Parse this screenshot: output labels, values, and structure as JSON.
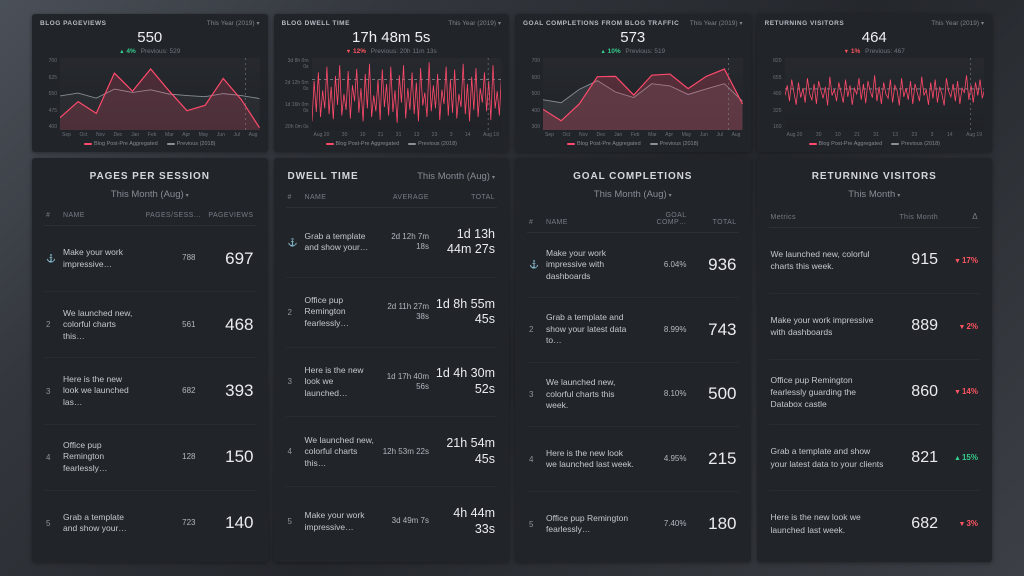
{
  "icons": {
    "chevron_down": "▾",
    "up_triangle": "▲",
    "down_triangle": "▼",
    "rank_medal": "⚓"
  },
  "colors": {
    "accent_pink": "#ff4a6b",
    "previous_grey": "#8a9098",
    "up_green": "#35cc8c",
    "down_red": "#ff5560",
    "panel_bg": "#212429"
  },
  "top_panels": [
    {
      "title": "BLOG PAGEVIEWS",
      "range": "This Year (2019)",
      "value": "550",
      "delta": {
        "dir": "up",
        "text": "4%"
      },
      "previous": "Previous: 529",
      "legend": [
        {
          "label": "Blog Post-Pre Aggregated",
          "color": "#ff4a6b"
        },
        {
          "label": "Previous (2018)",
          "color": "#8a9098"
        }
      ],
      "chart_data": {
        "type": "line",
        "xlabels": [
          "Sep",
          "Oct",
          "Nov",
          "Dec",
          "Jan",
          "Feb",
          "Mar",
          "Apr",
          "May",
          "Jun",
          "Jul",
          "Aug"
        ],
        "yticks": [
          "700",
          "625",
          "550",
          "475",
          "400"
        ],
        "ylim": [
          340,
          720
        ],
        "end_marker": true,
        "series": [
          {
            "name": "Previous (2018)",
            "color": "#878d95",
            "width": 0.9,
            "fill": true,
            "fill_opacity": 0.08,
            "values": [
              520,
              535,
              508,
              556,
              538,
              552,
              530,
              522,
              516,
              532,
              522,
              506
            ]
          },
          {
            "name": "Blog Post-Pre Aggregated",
            "color": "#ff4a6b",
            "width": 1.2,
            "fill": true,
            "fill_opacity": 0.18,
            "values": [
              405,
              490,
              428,
              640,
              545,
              662,
              548,
              442,
              470,
              612,
              500,
              352
            ]
          }
        ]
      }
    },
    {
      "title": "BLOG DWELL TIME",
      "range": "This Year (2019)",
      "value": "17h 48m 5s",
      "delta": {
        "dir": "down",
        "text": "12%"
      },
      "previous": "Previous: 20h 11m 13s",
      "legend": [
        {
          "label": "Blog Post-Pre Aggregated",
          "color": "#ff4a6b"
        },
        {
          "label": "Previous (2018)",
          "color": "#8a9098"
        }
      ],
      "chart_data": {
        "type": "line",
        "xlabels": [
          "Aug 20",
          "30",
          "10",
          "21",
          "31",
          "13",
          "23",
          "3",
          "14",
          "Aug 19"
        ],
        "yticks": [
          "3d 8h 0m 0s",
          "2d 12h 0m 0s",
          "1d 16h 0m 0s",
          "20h 0m 0s"
        ],
        "ylim": [
          0,
          100
        ],
        "end_marker": true,
        "series": [
          {
            "name": "Previous (2018)",
            "color": "#8a9098",
            "width": 0.8,
            "dashed": true,
            "values": [
              70,
              70
            ]
          },
          {
            "name": "Blog Post-Pre Aggregated",
            "color": "#ff4a6b",
            "width": 0.8,
            "values": [
              12,
              68,
              25,
              80,
              18,
              55,
              30,
              88,
              22,
              60,
              15,
              75,
              35,
              90,
              20,
              50,
              28,
              82,
              16,
              62,
              40,
              85,
              24,
              58,
              12,
              78,
              30,
              92,
              18,
              48,
              26,
              70,
              14,
              84,
              32,
              64,
              20,
              88,
              25,
              55,
              10,
              76,
              38,
              90,
              16,
              58,
              28,
              80,
              22,
              66,
              12,
              86,
              34,
              52,
              18,
              94,
              26,
              62,
              30,
              78,
              14,
              56,
              36,
              88,
              20,
              70,
              24,
              84,
              16,
              50,
              32,
              92,
              22,
              64,
              12,
              74,
              28,
              86,
              18,
              58,
              38,
              80,
              26,
              68,
              14,
              90,
              30,
              54,
              20,
              76
            ]
          }
        ]
      }
    },
    {
      "title": "GOAL COMPLETIONS FROM BLOG TRAFFIC",
      "range": "This Year (2019)",
      "value": "573",
      "delta": {
        "dir": "up",
        "text": "10%"
      },
      "previous": "Previous: 519",
      "legend": [
        {
          "label": "Blog Post-Pre Aggregated",
          "color": "#ff4a6b"
        },
        {
          "label": "Previous (2018)",
          "color": "#8a9098"
        }
      ],
      "chart_data": {
        "type": "line",
        "xlabels": [
          "Sep",
          "Oct",
          "Nov",
          "Dec",
          "Jan",
          "Feb",
          "Mar",
          "Apr",
          "May",
          "Jun",
          "Jul",
          "Aug"
        ],
        "yticks": [
          "700",
          "600",
          "500",
          "400",
          "300"
        ],
        "ylim": [
          250,
          720
        ],
        "end_marker": true,
        "series": [
          {
            "name": "Previous (2018)",
            "color": "#878d95",
            "width": 0.9,
            "fill": true,
            "fill_opacity": 0.16,
            "values": [
              448,
              428,
              515,
              572,
              498,
              462,
              552,
              538,
              482,
              518,
              552,
              438
            ]
          },
          {
            "name": "Blog Post-Pre Aggregated",
            "color": "#ff4a6b",
            "width": 1.2,
            "fill": true,
            "fill_opacity": 0.22,
            "values": [
              385,
              310,
              420,
              598,
              600,
              478,
              608,
              615,
              520,
              600,
              648,
              420
            ]
          }
        ]
      }
    },
    {
      "title": "RETURNING VISITORS",
      "range": "This Year (2019)",
      "value": "464",
      "delta": {
        "dir": "down",
        "text": "1%"
      },
      "previous": "Previous: 467",
      "legend": [
        {
          "label": "Blog Post-Pre Aggregated",
          "color": "#ff4a6b"
        },
        {
          "label": "Previous (2018)",
          "color": "#8a9098"
        }
      ],
      "chart_data": {
        "type": "line",
        "xlabels": [
          "Aug 20",
          "30",
          "10",
          "21",
          "31",
          "13",
          "23",
          "3",
          "14",
          "Aug 19"
        ],
        "yticks": [
          "820",
          "655",
          "490",
          "325",
          "160"
        ],
        "ylim": [
          0,
          100
        ],
        "end_marker": true,
        "series": [
          {
            "name": "Previous (2018)",
            "color": "#8a9098",
            "width": 0.8,
            "dashed": true,
            "values": [
              57,
              57
            ]
          },
          {
            "name": "Blog Post-Pre Aggregated",
            "color": "#ff4a6b",
            "width": 0.8,
            "values": [
              48,
              62,
              40,
              70,
              52,
              35,
              66,
              45,
              58,
              38,
              72,
              50,
              42,
              64,
              36,
              68,
              55,
              44,
              60,
              34,
              74,
              48,
              56,
              40,
              66,
              52,
              38,
              70,
              46,
              62,
              35,
              58,
              50,
              72,
              42,
              64,
              37,
              68,
              54,
              45,
              76,
              40,
              60,
              36,
              66,
              50,
              44,
              70,
              38,
              62,
              55,
              34,
              72,
              46,
              58,
              42,
              68,
              36,
              64,
              52,
              40,
              74,
              48,
              56,
              35,
              66,
              44,
              70,
              38,
              60,
              50,
              34,
              72,
              54,
              46,
              64,
              40,
              68,
              36,
              58,
              52,
              76,
              42,
              62,
              38,
              66,
              48,
              70,
              44,
              56
            ]
          }
        ]
      }
    }
  ],
  "tables": {
    "pages_per_session": {
      "title": "PAGES PER SESSION",
      "range": "This Month (Aug)",
      "columns": [
        "#",
        "NAME",
        "PAGES/SESS…",
        "PAGEVIEWS"
      ],
      "rows": [
        {
          "name": "Make your work impressive…",
          "mid": "788",
          "big": "697"
        },
        {
          "rank": "2",
          "name": "We launched new, colorful charts this…",
          "mid": "561",
          "big": "468"
        },
        {
          "rank": "3",
          "name": "Here is the new look we launched las…",
          "mid": "682",
          "big": "393"
        },
        {
          "rank": "4",
          "name": "Office pup Remington fearlessly…",
          "mid": "128",
          "big": "150"
        },
        {
          "rank": "5",
          "name": "Grab a template and show your…",
          "mid": "723",
          "big": "140"
        }
      ]
    },
    "dwell_time": {
      "title": "DWELL TIME",
      "range": "This Month (Aug)",
      "columns": [
        "#",
        "NAME",
        "AVERAGE",
        "TOTAL"
      ],
      "rows": [
        {
          "name": "Grab a template and show your…",
          "mid": "2d 12h 7m 18s",
          "big": "1d 13h 44m 27s"
        },
        {
          "rank": "2",
          "name": "Office pup Remington fearlessly…",
          "mid": "2d 11h 27m 38s",
          "big": "1d 8h 55m 45s"
        },
        {
          "rank": "3",
          "name": "Here is the new look we launched…",
          "mid": "1d 17h 40m 56s",
          "big": "1d 4h 30m 52s"
        },
        {
          "rank": "4",
          "name": "We launched new, colorful charts this…",
          "mid": "12h 53m 22s",
          "big": "21h 54m 45s"
        },
        {
          "rank": "5",
          "name": "Make your work impressive…",
          "mid": "3d 49m 7s",
          "big": "4h 44m 33s"
        }
      ]
    },
    "goal_completions": {
      "title": "GOAL COMPLETIONS",
      "range": "This Month (Aug)",
      "columns": [
        "#",
        "NAME",
        "GOAL COMP…",
        "TOTAL"
      ],
      "rows": [
        {
          "name": "Make your work impressive with dashboards",
          "mid": "6.04%",
          "big": "936"
        },
        {
          "rank": "2",
          "name": "Grab a template and show your latest data to…",
          "mid": "8.99%",
          "big": "743"
        },
        {
          "rank": "3",
          "name": "We launched new, colorful charts this week.",
          "mid": "8.10%",
          "big": "500"
        },
        {
          "rank": "4",
          "name": "Here is the new look we launched last week.",
          "mid": "4.95%",
          "big": "215"
        },
        {
          "rank": "5",
          "name": "Office pup Remington fearlessly…",
          "mid": "7.40%",
          "big": "180"
        }
      ]
    },
    "returning_visitors": {
      "title": "RETURNING VISITORS",
      "range": "This Month",
      "columns": [
        "Metrics",
        "This Month",
        "Δ"
      ],
      "rows": [
        {
          "name": "We launched new, colorful charts this week.",
          "value": "915",
          "delta": "17%",
          "dir": "down"
        },
        {
          "name": "Make your work impressive with dashboards",
          "value": "889",
          "delta": "2%",
          "dir": "down"
        },
        {
          "name": "Office pup Remington fearlessly guarding the Databox castle",
          "value": "860",
          "delta": "14%",
          "dir": "down"
        },
        {
          "name": "Grab a template and show your latest data to your clients",
          "value": "821",
          "delta": "15%",
          "dir": "up"
        },
        {
          "name": "Here is the new look we launched last week.",
          "value": "682",
          "delta": "3%",
          "dir": "down"
        }
      ]
    }
  }
}
